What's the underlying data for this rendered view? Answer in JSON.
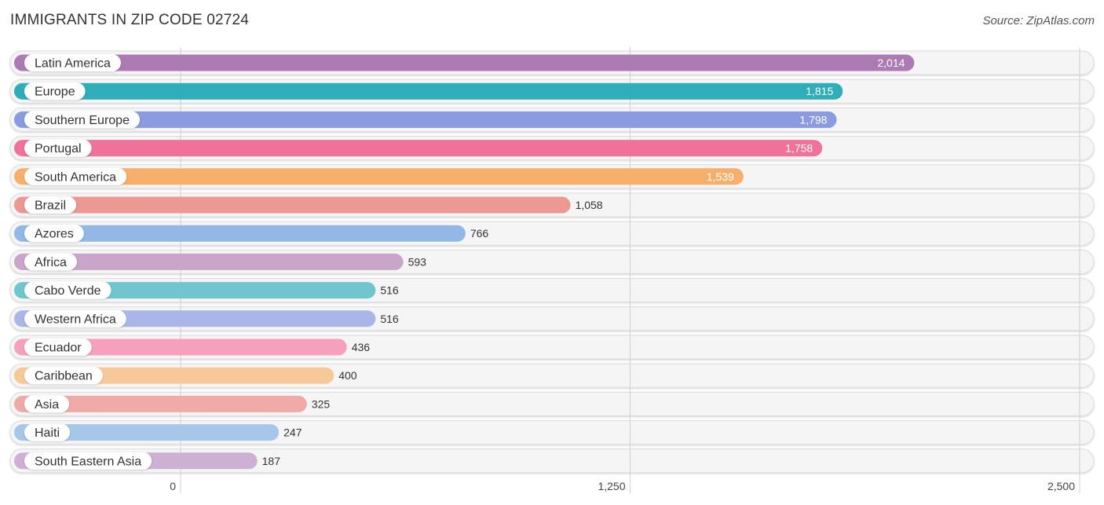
{
  "header": {
    "title": "IMMIGRANTS IN ZIP CODE 02724",
    "source": "Source: ZipAtlas.com"
  },
  "chart_data": {
    "type": "bar",
    "orientation": "horizontal",
    "title": "IMMIGRANTS IN ZIP CODE 02724",
    "source": "Source: ZipAtlas.com",
    "xlabel": "",
    "ylabel": "",
    "xlim": [
      0,
      2500
    ],
    "xticks": [
      0,
      1250,
      2500
    ],
    "xtick_labels": [
      "0",
      "1,250",
      "2,500"
    ],
    "grid": true,
    "categories": [
      "Latin America",
      "Europe",
      "Southern Europe",
      "Portugal",
      "South America",
      "Brazil",
      "Azores",
      "Africa",
      "Cabo Verde",
      "Western Africa",
      "Ecuador",
      "Caribbean",
      "Asia",
      "Haiti",
      "South Eastern Asia"
    ],
    "values": [
      2014,
      1815,
      1798,
      1758,
      1539,
      1058,
      766,
      593,
      516,
      516,
      436,
      400,
      325,
      247,
      187
    ],
    "value_labels": [
      "2,014",
      "1,815",
      "1,798",
      "1,758",
      "1,539",
      "1,058",
      "766",
      "593",
      "516",
      "516",
      "436",
      "400",
      "325",
      "247",
      "187"
    ],
    "colors": [
      "#ad7bb4",
      "#2fadb8",
      "#8a9be0",
      "#f0729b",
      "#f7b06c",
      "#ec9893",
      "#92b8e6",
      "#c8a5c9",
      "#6fc6cd",
      "#aab5e8",
      "#f5a0bd",
      "#f8c998",
      "#f0aaa7",
      "#a6c6ea",
      "#cdb0d4"
    ]
  }
}
